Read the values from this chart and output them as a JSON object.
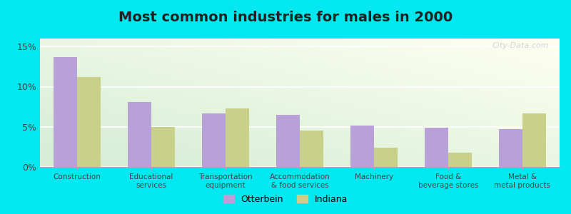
{
  "title": "Most common industries for males in 2000",
  "categories": [
    "Construction",
    "Educational\nservices",
    "Transportation\nequipment",
    "Accommodation\n& food services",
    "Machinery",
    "Food &\nbeverage stores",
    "Metal &\nmetal products"
  ],
  "otterbein": [
    13.7,
    8.1,
    6.7,
    6.5,
    5.2,
    4.9,
    4.7
  ],
  "indiana": [
    11.2,
    5.0,
    7.3,
    4.5,
    2.4,
    1.8,
    6.7
  ],
  "otterbein_color": "#b8a0d8",
  "indiana_color": "#c8d08a",
  "ylim": [
    0,
    16
  ],
  "yticks": [
    0,
    5,
    10,
    15
  ],
  "ytick_labels": [
    "0%",
    "5%",
    "10%",
    "15%"
  ],
  "outer_background": "#00e8f0",
  "legend_otterbein": "Otterbein",
  "legend_indiana": "Indiana",
  "title_fontsize": 14,
  "watermark": "City-Data.com",
  "bar_width": 0.32,
  "grad_top_left": "#d4edd4",
  "grad_bottom_right": "#fffff0"
}
